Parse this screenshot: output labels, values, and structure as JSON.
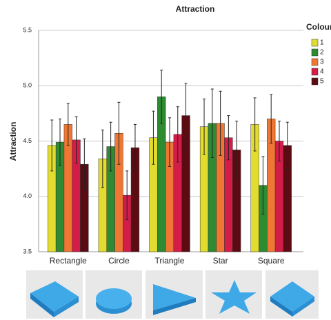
{
  "chart_data": {
    "type": "bar",
    "title": "Attraction",
    "y_label": "Attraction",
    "legend_title": "Colour",
    "categories": [
      "Rectangle",
      "Circle",
      "Triangle",
      "Star",
      "Square"
    ],
    "series": [
      {
        "name": "1",
        "color": "#e2dc2e",
        "values": [
          4.46,
          4.34,
          4.53,
          4.63,
          4.65
        ],
        "errors": [
          0.23,
          0.26,
          0.24,
          0.25,
          0.24
        ]
      },
      {
        "name": "2",
        "color": "#2e8b32",
        "values": [
          4.49,
          4.45,
          4.9,
          4.66,
          4.1
        ],
        "errors": [
          0.21,
          0.22,
          0.24,
          0.31,
          0.26
        ]
      },
      {
        "name": "3",
        "color": "#ef7733",
        "values": [
          4.65,
          4.57,
          4.49,
          4.66,
          4.7
        ],
        "errors": [
          0.19,
          0.28,
          0.22,
          0.29,
          0.22
        ]
      },
      {
        "name": "4",
        "color": "#d41c48",
        "values": [
          4.51,
          4.01,
          4.56,
          4.53,
          4.5
        ],
        "errors": [
          0.21,
          0.22,
          0.25,
          0.2,
          0.18
        ]
      },
      {
        "name": "5",
        "color": "#5c0b12",
        "values": [
          4.29,
          4.44,
          4.73,
          4.42,
          4.46
        ],
        "errors": [
          0.23,
          0.21,
          0.29,
          0.26,
          0.21
        ]
      }
    ],
    "ylim": [
      3.5,
      5.5
    ],
    "yticks": [
      3.5,
      {
        "value": 4.0,
        "label": "4.0"
      },
      4.5,
      {
        "value": 5.0,
        "label": "5.0"
      },
      5.5
    ],
    "grid": true,
    "legend": "right"
  }
}
